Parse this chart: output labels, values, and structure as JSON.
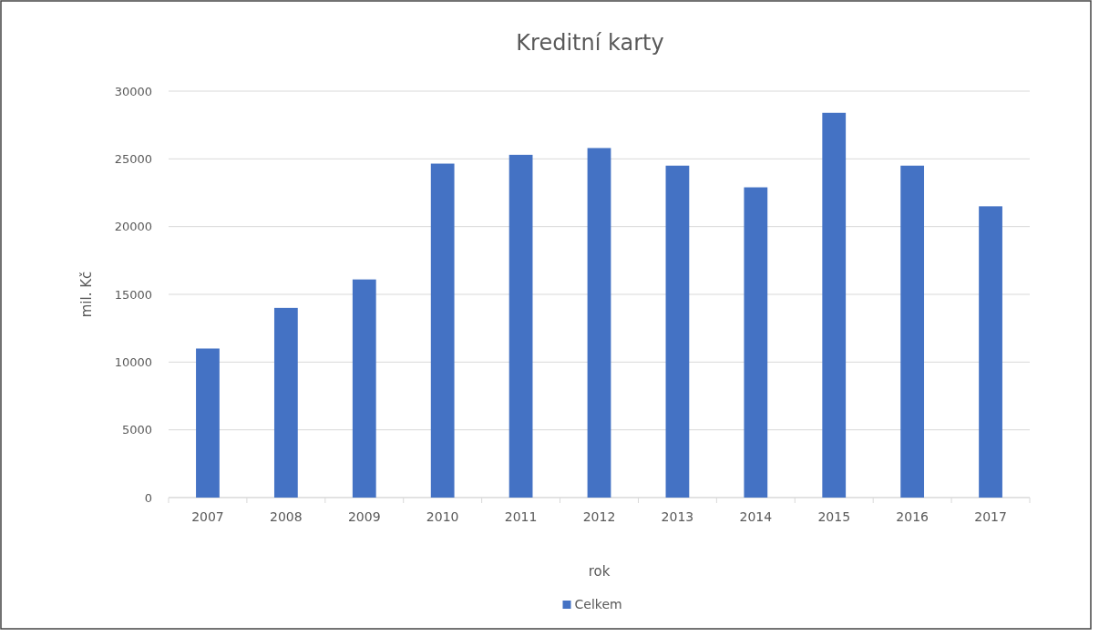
{
  "chart_data": {
    "type": "bar",
    "title": "Kreditní karty",
    "xlabel": "rok",
    "ylabel": "mil. Kč",
    "categories": [
      "2007",
      "2008",
      "2009",
      "2010",
      "2011",
      "2012",
      "2013",
      "2014",
      "2015",
      "2016",
      "2017"
    ],
    "series": [
      {
        "name": "Celkem",
        "color": "#4472c4",
        "values": [
          11000,
          14000,
          16100,
          24650,
          25300,
          25800,
          24500,
          22900,
          28400,
          24500,
          21500
        ]
      }
    ],
    "ylim": [
      0,
      30000
    ],
    "yticks": [
      0,
      5000,
      10000,
      15000,
      20000,
      25000,
      30000
    ],
    "grid": "y",
    "legend": "bottom"
  }
}
